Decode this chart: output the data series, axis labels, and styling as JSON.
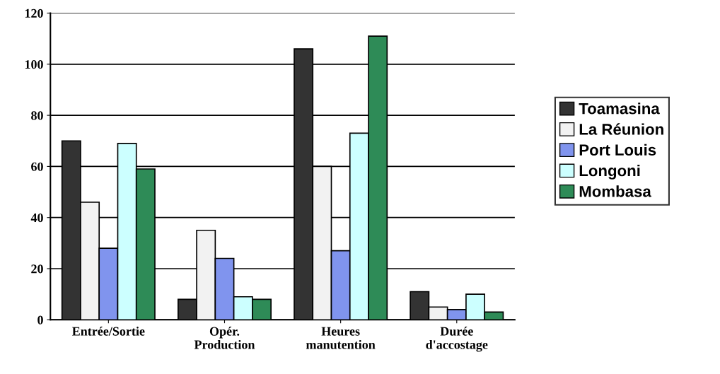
{
  "chart_data": {
    "type": "bar",
    "categories": [
      "Entrée/Sortie",
      "Opér.\nProduction",
      "Heures\nmanutention",
      "Durée\nd'accostage"
    ],
    "series": [
      {
        "name": "Toamasina",
        "color": "#333333",
        "values": [
          70,
          8,
          106,
          11
        ]
      },
      {
        "name": "La Réunion",
        "color": "#f2f2f2",
        "values": [
          46,
          35,
          60,
          5
        ]
      },
      {
        "name": "Port Louis",
        "color": "#8094ee",
        "values": [
          28,
          24,
          27,
          4
        ]
      },
      {
        "name": "Longoni",
        "color": "#ccffff",
        "values": [
          69,
          9,
          73,
          10
        ]
      },
      {
        "name": "Mombasa",
        "color": "#2e8b57",
        "values": [
          59,
          8,
          111,
          3
        ]
      }
    ],
    "ylim": [
      0,
      120
    ],
    "yticks": [
      0,
      20,
      40,
      60,
      80,
      100,
      120
    ],
    "grid": "y",
    "legend": "right"
  }
}
